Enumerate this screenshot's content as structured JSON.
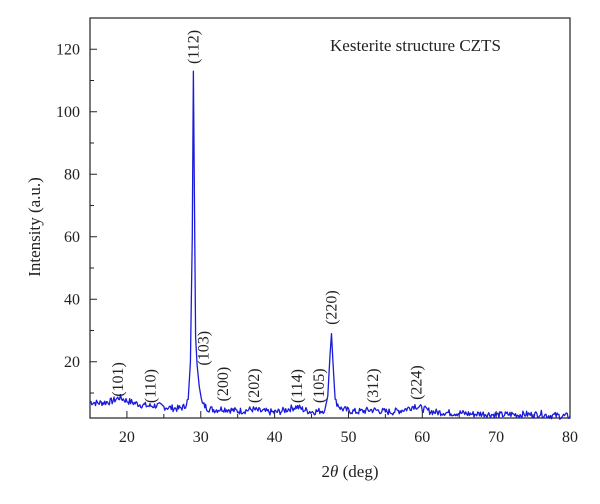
{
  "chart_data": {
    "type": "line",
    "title": "",
    "annotation_title": "Kesterite structure CZTS",
    "xlabel_prefix": "2",
    "xlabel_symbol": "θ",
    "xlabel_suffix": " (deg)",
    "ylabel": "Intensity (a.u.)",
    "xlim": [
      15,
      80
    ],
    "ylim": [
      2,
      130
    ],
    "x_ticks": [
      20,
      30,
      40,
      50,
      60,
      70,
      80
    ],
    "y_ticks": [
      20,
      40,
      60,
      80,
      100,
      120
    ],
    "grid": false,
    "series_color": "#1a1adb",
    "series": [
      {
        "name": "",
        "points": [
          [
            15,
            7.2
          ],
          [
            16,
            6.8
          ],
          [
            17,
            7.0
          ],
          [
            18,
            7.4
          ],
          [
            19,
            8.6
          ],
          [
            20,
            7.5
          ],
          [
            21,
            6.8
          ],
          [
            22,
            6.2
          ],
          [
            23,
            5.8
          ],
          [
            24,
            6.0
          ],
          [
            25,
            5.6
          ],
          [
            26,
            5.2
          ],
          [
            27,
            5.0
          ],
          [
            27.8,
            5.6
          ],
          [
            28.3,
            8.0
          ],
          [
            28.6,
            20.0
          ],
          [
            28.85,
            60.0
          ],
          [
            29.0,
            113.0
          ],
          [
            29.15,
            70.0
          ],
          [
            29.3,
            28.0
          ],
          [
            29.5,
            19.0
          ],
          [
            29.8,
            12.0
          ],
          [
            30.2,
            6.5
          ],
          [
            31,
            5.0
          ],
          [
            32,
            4.6
          ],
          [
            33,
            5.0
          ],
          [
            34,
            4.6
          ],
          [
            35,
            4.2
          ],
          [
            36,
            4.4
          ],
          [
            37,
            4.8
          ],
          [
            38,
            4.2
          ],
          [
            39,
            4.0
          ],
          [
            40,
            3.8
          ],
          [
            41,
            4.2
          ],
          [
            42,
            5.0
          ],
          [
            43,
            5.6
          ],
          [
            44,
            4.6
          ],
          [
            45,
            4.0
          ],
          [
            46,
            4.2
          ],
          [
            46.8,
            4.6
          ],
          [
            47.2,
            9.0
          ],
          [
            47.5,
            22.0
          ],
          [
            47.7,
            29.0
          ],
          [
            47.9,
            20.0
          ],
          [
            48.2,
            7.5
          ],
          [
            49,
            5.0
          ],
          [
            50,
            4.4
          ],
          [
            51,
            4.0
          ],
          [
            52,
            4.2
          ],
          [
            53,
            4.6
          ],
          [
            54,
            4.4
          ],
          [
            55,
            4.0
          ],
          [
            56,
            4.0
          ],
          [
            57,
            4.4
          ],
          [
            58,
            5.0
          ],
          [
            59,
            6.0
          ],
          [
            60,
            5.0
          ],
          [
            61,
            4.2
          ],
          [
            62,
            3.8
          ],
          [
            63,
            3.8
          ],
          [
            64,
            3.6
          ],
          [
            65,
            3.6
          ],
          [
            66,
            3.4
          ],
          [
            67,
            3.2
          ],
          [
            68,
            3.4
          ],
          [
            69,
            3.2
          ],
          [
            70,
            3.0
          ],
          [
            71,
            3.0
          ],
          [
            72,
            3.2
          ],
          [
            73,
            3.0
          ],
          [
            74,
            3.2
          ],
          [
            75,
            3.0
          ],
          [
            76,
            3.4
          ],
          [
            77,
            2.8
          ],
          [
            78,
            2.8
          ],
          [
            79,
            2.6
          ],
          [
            80,
            2.6
          ]
        ]
      }
    ],
    "peak_labels": [
      {
        "text": "(101)",
        "x": 18.8,
        "y": 7.5
      },
      {
        "text": "(110)",
        "x": 23.2,
        "y": 5.5
      },
      {
        "text": "(112)",
        "x": 29.0,
        "y": 114
      },
      {
        "text": "(103)",
        "x": 30.4,
        "y": 17.5
      },
      {
        "text": "(200)",
        "x": 33.0,
        "y": 6.0
      },
      {
        "text": "(202)",
        "x": 37.2,
        "y": 5.5
      },
      {
        "text": "(114)",
        "x": 43.0,
        "y": 5.5
      },
      {
        "text": "(105)",
        "x": 46.0,
        "y": 5.5
      },
      {
        "text": "(220)",
        "x": 47.7,
        "y": 30.5
      },
      {
        "text": "(312)",
        "x": 53.3,
        "y": 5.5
      },
      {
        "text": "(224)",
        "x": 59.2,
        "y": 6.5
      }
    ]
  }
}
